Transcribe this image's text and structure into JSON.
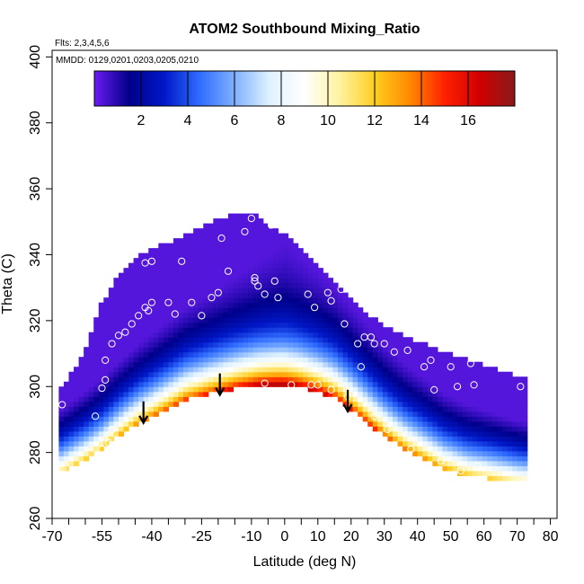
{
  "chart_data": {
    "type": "heatmap",
    "title": "ATOM2 Southbound Mixing_Ratio",
    "subtitle_flights": "Flts: 2,3,4,5,6",
    "subtitle_dates": "MMDD: 0129,0201,0203,0205,0210",
    "xlabel": "Latitude (deg N)",
    "ylabel": "Theta (C)",
    "xlim": [
      -70,
      82
    ],
    "ylim": [
      260,
      402
    ],
    "x_ticks": [
      -70,
      -55,
      -40,
      -25,
      -10,
      0,
      10,
      20,
      30,
      40,
      50,
      60,
      70,
      80
    ],
    "x_minor_ticks": [
      -65,
      -60,
      -50,
      -45,
      -35,
      -30,
      -20,
      -15,
      -5,
      5,
      15,
      25,
      35,
      45,
      55,
      65,
      75
    ],
    "y_ticks": [
      260,
      280,
      300,
      320,
      340,
      360,
      380,
      400
    ],
    "colorbar": {
      "range": [
        0,
        18
      ],
      "ticks": [
        2,
        4,
        6,
        8,
        10,
        12,
        14,
        16
      ],
      "stops": [
        "#6a1cf0",
        "#00008a",
        "#0018c8",
        "#2f6cff",
        "#7fb0ff",
        "#dff2ff",
        "#ffffff",
        "#fff2a0",
        "#ffce20",
        "#ff8a00",
        "#ff2000",
        "#d00000",
        "#8a1a1a"
      ]
    },
    "field": {
      "domain_top_theta": [
        [
          -68,
          298
        ],
        [
          -60,
          310
        ],
        [
          -55,
          325
        ],
        [
          -50,
          333
        ],
        [
          -45,
          338
        ],
        [
          -40,
          341
        ],
        [
          -35,
          343
        ],
        [
          -28,
          346
        ],
        [
          -20,
          350
        ],
        [
          -13,
          352
        ],
        [
          -8,
          351
        ],
        [
          -3,
          347
        ],
        [
          2,
          344
        ],
        [
          8,
          338
        ],
        [
          14,
          332
        ],
        [
          20,
          326
        ],
        [
          25,
          321
        ],
        [
          32,
          317
        ],
        [
          40,
          313
        ],
        [
          50,
          309
        ],
        [
          60,
          306
        ],
        [
          72,
          302
        ]
      ],
      "domain_bottom_theta": [
        [
          -68,
          274
        ],
        [
          -60,
          278
        ],
        [
          -55,
          281
        ],
        [
          -50,
          285
        ],
        [
          -44,
          289
        ],
        [
          -38,
          292
        ],
        [
          -30,
          296
        ],
        [
          -22,
          298
        ],
        [
          -15,
          299.5
        ],
        [
          -8,
          300.5
        ],
        [
          -2,
          300.5
        ],
        [
          4,
          300
        ],
        [
          10,
          298.5
        ],
        [
          15,
          296.5
        ],
        [
          20,
          293
        ],
        [
          25,
          289
        ],
        [
          30,
          285
        ],
        [
          36,
          281
        ],
        [
          42,
          278
        ],
        [
          48,
          275
        ],
        [
          55,
          273
        ],
        [
          64,
          272
        ],
        [
          72,
          271
        ]
      ],
      "max_ratio": 17.5
    },
    "observation_points": [
      [
        -67,
        294.5
      ],
      [
        -67,
        275
      ],
      [
        -57,
        291
      ],
      [
        -55,
        299.5
      ],
      [
        -55,
        281
      ],
      [
        -53,
        283
      ],
      [
        -52,
        287
      ],
      [
        -54,
        302
      ],
      [
        -54,
        308
      ],
      [
        -52,
        313
      ],
      [
        -50,
        315.5
      ],
      [
        -48,
        316.5
      ],
      [
        -46,
        319
      ],
      [
        -44,
        321.5
      ],
      [
        -42,
        324
      ],
      [
        -41,
        323
      ],
      [
        -40,
        325.5
      ],
      [
        -42,
        337.5
      ],
      [
        -40,
        338
      ],
      [
        -35,
        325.5
      ],
      [
        -33,
        322
      ],
      [
        -31,
        338
      ],
      [
        -28,
        325.5
      ],
      [
        -25,
        321.5
      ],
      [
        -22,
        327
      ],
      [
        -20,
        328.5
      ],
      [
        -19,
        345
      ],
      [
        -17,
        335
      ],
      [
        -14,
        298.5
      ],
      [
        -12,
        347
      ],
      [
        -10,
        351
      ],
      [
        -9,
        332
      ],
      [
        -9,
        333
      ],
      [
        -8,
        330.5
      ],
      [
        -6,
        328
      ],
      [
        -6,
        301
      ],
      [
        -4,
        349
      ],
      [
        -3,
        332
      ],
      [
        -2,
        327
      ],
      [
        2,
        300.5
      ],
      [
        7,
        328
      ],
      [
        8,
        300.5
      ],
      [
        9,
        324
      ],
      [
        10,
        300.5
      ],
      [
        13,
        328.5
      ],
      [
        14,
        326
      ],
      [
        14,
        299
      ],
      [
        17,
        329.5
      ],
      [
        18,
        319
      ],
      [
        19,
        297
      ],
      [
        21,
        328.5
      ],
      [
        22,
        313
      ],
      [
        23,
        306
      ],
      [
        24,
        315
      ],
      [
        26,
        315
      ],
      [
        27,
        313
      ],
      [
        27,
        291
      ],
      [
        30,
        313
      ],
      [
        31,
        287
      ],
      [
        33,
        310.5
      ],
      [
        37,
        311
      ],
      [
        38,
        281
      ],
      [
        42,
        306
      ],
      [
        44,
        308
      ],
      [
        45,
        299
      ],
      [
        47,
        277.5
      ],
      [
        50,
        306
      ],
      [
        52,
        300
      ],
      [
        53,
        274.5
      ],
      [
        56,
        307
      ],
      [
        57,
        300.5
      ],
      [
        58,
        276
      ],
      [
        71,
        300
      ]
    ],
    "arrows": [
      [
        -42.5,
        295.5
      ],
      [
        -19.5,
        304
      ],
      [
        19,
        299
      ]
    ]
  }
}
